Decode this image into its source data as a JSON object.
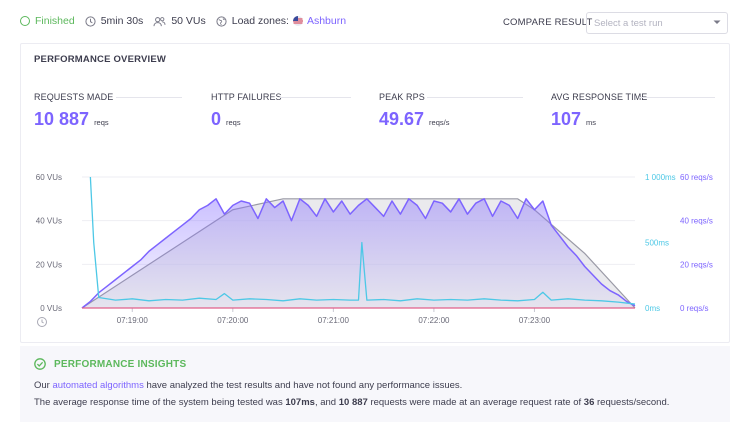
{
  "status": {
    "state": "Finished",
    "duration": "5min 30s",
    "vus": "50 VUs",
    "load_zones_label": "Load zones:",
    "load_zone": "Ashburn"
  },
  "compare": {
    "label": "COMPARE RESULT",
    "placeholder": "Select a test run"
  },
  "overview": {
    "title": "PERFORMANCE OVERVIEW",
    "metrics": [
      {
        "label": "REQUESTS MADE",
        "value": "10 887",
        "unit": "reqs"
      },
      {
        "label": "HTTP FAILURES",
        "value": "0",
        "unit": "reqs"
      },
      {
        "label": "PEAK RPS",
        "value": "49.67",
        "unit": "reqs/s"
      },
      {
        "label": "AVG RESPONSE TIME",
        "value": "107",
        "unit": "ms"
      }
    ]
  },
  "colors": {
    "accent": "#7d64ff",
    "success": "#5cb85c",
    "response_line": "#4dc8e6",
    "vus_fill": "#d8d8de",
    "failures_line": "#e0608a"
  },
  "chart_data": {
    "type": "line",
    "x_ticks": [
      "07:19:00",
      "07:20:00",
      "07:21:00",
      "07:22:00",
      "07:23:00"
    ],
    "y_left_ticks": [
      "60 VUs",
      "40 VUs",
      "20 VUs",
      "0 VUs"
    ],
    "y_right_response_ticks": [
      "1 000ms",
      "500ms",
      "0ms"
    ],
    "y_right_rps_ticks": [
      "60 reqs/s",
      "40 reqs/s",
      "20 reqs/s",
      "0 reqs/s"
    ],
    "x_range_seconds": [
      0,
      330
    ],
    "series": [
      {
        "name": "VUs",
        "axis": "vus",
        "x": [
          0,
          10,
          30,
          60,
          90,
          120,
          150,
          180,
          210,
          240,
          260,
          270,
          300,
          330
        ],
        "values": [
          0,
          5,
          15,
          30,
          45,
          50,
          50,
          50,
          50,
          50,
          50,
          45,
          25,
          0
        ]
      },
      {
        "name": "Requests per second",
        "axis": "rps",
        "x": [
          0,
          5,
          10,
          15,
          20,
          25,
          30,
          35,
          40,
          45,
          50,
          55,
          60,
          65,
          70,
          75,
          80,
          85,
          90,
          95,
          100,
          105,
          110,
          115,
          120,
          125,
          130,
          135,
          140,
          145,
          150,
          155,
          160,
          165,
          170,
          175,
          180,
          185,
          190,
          195,
          200,
          205,
          210,
          215,
          220,
          225,
          230,
          235,
          240,
          245,
          250,
          255,
          260,
          265,
          270,
          275,
          280,
          285,
          290,
          295,
          300,
          305,
          310,
          315,
          320,
          325,
          330
        ],
        "values": [
          0,
          3,
          7,
          10,
          13,
          16,
          19,
          22,
          26,
          29,
          32,
          35,
          38,
          41,
          45,
          47,
          50,
          43,
          47,
          49,
          48,
          41,
          50,
          46,
          49,
          40,
          50,
          47,
          42,
          50,
          44,
          49,
          43,
          47,
          50,
          46,
          42,
          49,
          43,
          50,
          47,
          41,
          49,
          48,
          44,
          50,
          43,
          48,
          50,
          42,
          49,
          47,
          41,
          50,
          45,
          49,
          38,
          33,
          28,
          24,
          19,
          15,
          11,
          8,
          6,
          3,
          1
        ]
      },
      {
        "name": "Response time",
        "axis": "response",
        "x": [
          5,
          7,
          10,
          20,
          30,
          40,
          50,
          60,
          70,
          80,
          85,
          90,
          100,
          110,
          120,
          130,
          140,
          150,
          160,
          165,
          167,
          170,
          180,
          190,
          200,
          210,
          220,
          230,
          240,
          250,
          260,
          270,
          275,
          280,
          290,
          300,
          310,
          320,
          330
        ],
        "values": [
          1000,
          500,
          80,
          60,
          70,
          55,
          65,
          60,
          75,
          65,
          110,
          60,
          70,
          65,
          55,
          70,
          60,
          65,
          60,
          60,
          500,
          60,
          65,
          55,
          70,
          60,
          65,
          60,
          70,
          60,
          55,
          65,
          120,
          60,
          70,
          60,
          55,
          45,
          30
        ]
      }
    ]
  },
  "insights": {
    "title": "PERFORMANCE INSIGHTS",
    "line1_pre": "Our",
    "line1_link": "automated algorithms",
    "line1_post": "have analyzed the test results and have not found any performance issues.",
    "line2_a": "The average response time of the system being tested was",
    "line2_b": "107ms",
    "line2_c": ", and",
    "line2_d": "10 887",
    "line2_e": "requests were made at an average request rate of",
    "line2_f": "36",
    "line2_g": "requests/second."
  }
}
